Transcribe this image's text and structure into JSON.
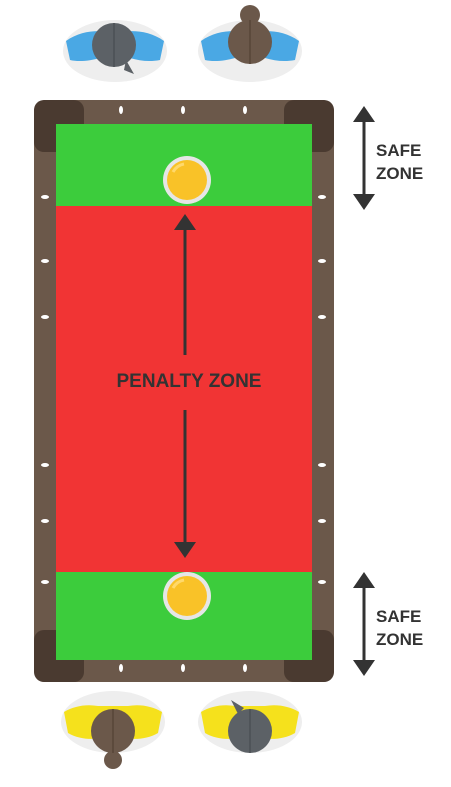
{
  "labels": {
    "penalty_zone": "PENALTY ZONE",
    "safe_zone_top": [
      "SAFE",
      "ZONE"
    ],
    "safe_zone_bottom": [
      "SAFE",
      "ZONE"
    ]
  },
  "colors": {
    "rail": "#6b584a",
    "rail_corner": "#4a3a30",
    "safe_zone": "#3ccc3c",
    "penalty_zone": "#f13434",
    "ball": "#f9c228",
    "arrow": "#333333",
    "blue_shoulders": "#4aa8e4",
    "yellow_shoulders": "#f5e11c",
    "head_gray": "#5c6166",
    "head_brown": "#6b584a"
  },
  "icons": {
    "top_players": [
      "player-gray-hair-blue-shirt-icon",
      "player-brown-hair-blue-shirt-icon"
    ],
    "bottom_players": [
      "player-brown-hair-yellow-shirt-icon",
      "player-gray-hair-yellow-shirt-icon"
    ],
    "balls": [
      "cue-ball-top-icon",
      "cue-ball-bottom-icon"
    ]
  }
}
